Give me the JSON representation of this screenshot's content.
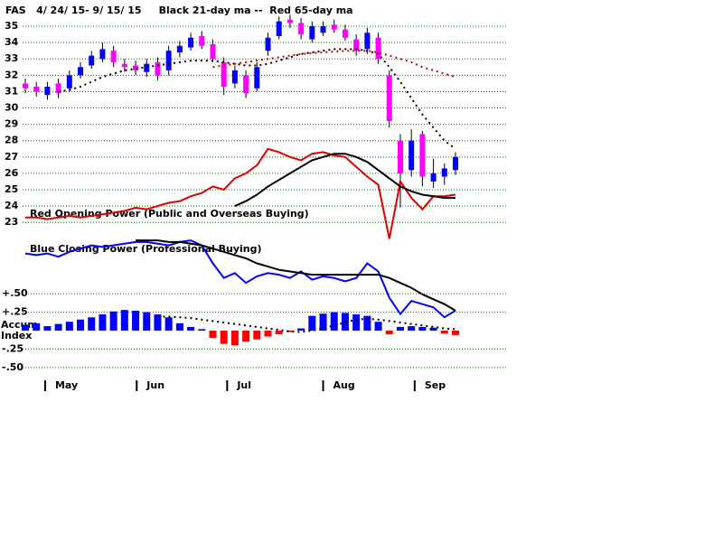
{
  "chart_data": [
    {
      "type": "candlestick",
      "title": "FAS   4/ 24/ 15- 9/ 15/ 15     Black 21-day ma --  Red 65-day ma",
      "annotations": [
        "Red Opening Power (Public and Overseas Buying)",
        "Blue Closing Power (Professional Buying)"
      ],
      "open": [
        31.5,
        31.3,
        30.8,
        31.5,
        31.2,
        32.0,
        32.6,
        33.0,
        33.5,
        32.7,
        32.6,
        32.2,
        32.8,
        32.3,
        33.4,
        33.7,
        34.4,
        33.9,
        32.8,
        31.5,
        32.0,
        31.2,
        33.5,
        34.4,
        35.4,
        35.2,
        34.2,
        34.6,
        35.1,
        34.8,
        34.2,
        33.6,
        34.3,
        32.0,
        28.0,
        26.2,
        28.4,
        25.5,
        25.8,
        26.2
      ],
      "high": [
        31.8,
        31.6,
        31.6,
        31.8,
        32.3,
        32.8,
        33.5,
        34.0,
        33.8,
        33.0,
        32.9,
        33.0,
        33.1,
        33.8,
        34.1,
        34.6,
        34.7,
        34.2,
        33.1,
        32.6,
        32.3,
        32.8,
        34.6,
        35.6,
        35.7,
        35.5,
        35.3,
        35.3,
        35.4,
        35.1,
        34.5,
        34.9,
        34.6,
        32.3,
        28.4,
        28.7,
        28.6,
        26.9,
        26.6,
        27.3
      ],
      "low": [
        30.9,
        30.7,
        30.5,
        30.6,
        31.0,
        31.8,
        32.4,
        32.8,
        32.5,
        32.2,
        32.0,
        31.9,
        31.7,
        32.0,
        33.1,
        33.5,
        33.6,
        32.8,
        30.8,
        31.2,
        30.6,
        31.0,
        33.2,
        34.2,
        34.9,
        34.2,
        34.0,
        34.4,
        34.6,
        34.1,
        33.2,
        33.3,
        32.7,
        28.8,
        23.9,
        25.8,
        25.2,
        25.1,
        25.3,
        25.9
      ],
      "close": [
        31.2,
        31.0,
        31.3,
        30.9,
        32.0,
        32.5,
        33.2,
        33.6,
        32.8,
        32.5,
        32.3,
        32.7,
        32.0,
        33.5,
        33.8,
        34.3,
        33.8,
        33.0,
        31.3,
        32.3,
        30.9,
        32.5,
        34.3,
        35.3,
        35.2,
        34.5,
        35.0,
        35.0,
        34.8,
        34.3,
        33.5,
        34.6,
        33.0,
        29.2,
        26.0,
        28.0,
        25.8,
        26.0,
        26.3,
        27.0
      ],
      "up_color": "#0000ff",
      "down_color": "#ff00ff",
      "lines": [
        {
          "color": "#000000",
          "dotted": true,
          "values": [
            null,
            null,
            null,
            31.0,
            31.1,
            31.3,
            31.6,
            31.9,
            32.1,
            32.3,
            32.4,
            32.5,
            32.6,
            32.7,
            32.8,
            32.9,
            32.9,
            32.9,
            32.8,
            32.7,
            32.6,
            32.6,
            32.7,
            32.9,
            33.1,
            33.3,
            33.4,
            33.5,
            33.6,
            33.6,
            33.6,
            33.5,
            33.3,
            32.5,
            31.6,
            30.6,
            29.6,
            28.8,
            28.0,
            27.5
          ]
        },
        {
          "color": "#cc0000",
          "dotted": true,
          "values": [
            null,
            null,
            null,
            null,
            null,
            null,
            null,
            null,
            null,
            null,
            null,
            null,
            null,
            null,
            null,
            null,
            null,
            32.5,
            32.6,
            32.7,
            32.8,
            32.9,
            33.0,
            33.1,
            33.2,
            33.3,
            33.35,
            33.4,
            33.45,
            33.5,
            33.5,
            33.5,
            33.4,
            33.2,
            33.0,
            32.8,
            32.5,
            32.3,
            32.1,
            31.9
          ]
        },
        {
          "color": "#dd0000",
          "dotted": false,
          "values": [
            23.3,
            23.3,
            23.2,
            23.3,
            23.4,
            23.3,
            23.4,
            23.5,
            23.6,
            23.7,
            23.9,
            23.8,
            24.0,
            24.2,
            24.3,
            24.6,
            24.8,
            25.2,
            25.0,
            25.7,
            26.0,
            26.5,
            27.5,
            27.3,
            27.0,
            26.8,
            27.2,
            27.3,
            27.1,
            27.0,
            26.4,
            25.8,
            25.3,
            22.0,
            25.5,
            24.5,
            23.8,
            24.6,
            24.6,
            24.7
          ]
        },
        {
          "color": "#000000",
          "dotted": false,
          "values": [
            null,
            null,
            null,
            null,
            null,
            null,
            null,
            null,
            null,
            null,
            null,
            null,
            null,
            null,
            null,
            null,
            null,
            null,
            null,
            24.0,
            24.3,
            24.7,
            25.2,
            25.6,
            26.0,
            26.4,
            26.8,
            27.0,
            27.2,
            27.2,
            27.0,
            26.7,
            26.2,
            25.7,
            25.2,
            24.9,
            24.7,
            24.6,
            24.5,
            24.5
          ]
        },
        {
          "color": "#0000ff",
          "dotted": false,
          "values": [
            21.1,
            21.0,
            21.1,
            20.9,
            21.2,
            21.4,
            21.6,
            21.5,
            21.6,
            21.7,
            21.8,
            21.8,
            21.7,
            21.6,
            21.8,
            21.9,
            21.6,
            20.5,
            19.6,
            19.9,
            19.3,
            19.7,
            19.9,
            19.8,
            19.6,
            20.0,
            19.5,
            19.7,
            19.6,
            19.4,
            19.6,
            20.5,
            20.0,
            18.4,
            17.4,
            18.2,
            18.0,
            17.8,
            17.2,
            17.6
          ]
        },
        {
          "color": "#000000",
          "dotted": false,
          "values": [
            null,
            null,
            null,
            null,
            null,
            null,
            null,
            null,
            null,
            null,
            21.9,
            21.9,
            21.9,
            21.8,
            21.8,
            21.7,
            21.6,
            21.4,
            21.2,
            21.0,
            20.8,
            20.5,
            20.3,
            20.1,
            20.0,
            19.9,
            19.8,
            19.8,
            19.8,
            19.8,
            19.8,
            19.8,
            19.8,
            19.6,
            19.3,
            19.0,
            18.6,
            18.3,
            18.0,
            17.6
          ]
        }
      ],
      "xlim": [
        0,
        39
      ],
      "ylim": [
        12.9,
        35.5
      ],
      "yticks": [
        23,
        24,
        25,
        26,
        27,
        28,
        29,
        30,
        31,
        32,
        33,
        34,
        35
      ],
      "grid": true,
      "grid_color": "#008000"
    },
    {
      "type": "bar",
      "label": [
        "Accum",
        "Index"
      ],
      "values": [
        0.08,
        0.1,
        0.06,
        0.09,
        0.12,
        0.15,
        0.18,
        0.22,
        0.26,
        0.28,
        0.27,
        0.25,
        0.22,
        0.18,
        0.1,
        0.05,
        0.02,
        -0.1,
        -0.18,
        -0.2,
        -0.15,
        -0.12,
        -0.08,
        -0.05,
        -0.02,
        0.03,
        0.2,
        0.23,
        0.25,
        0.24,
        0.22,
        0.2,
        0.12,
        -0.05,
        0.05,
        0.06,
        0.05,
        0.04,
        -0.04,
        -0.06
      ],
      "up_color": "#0000ff",
      "down_color": "#ff0000",
      "lines": [
        {
          "color": "#000000",
          "dotted": true,
          "values": [
            null,
            null,
            null,
            null,
            null,
            null,
            null,
            null,
            null,
            null,
            null,
            null,
            0.19,
            0.19,
            0.18,
            0.17,
            0.15,
            0.13,
            0.11,
            0.09,
            0.07,
            0.05,
            0.03,
            0.01,
            -0.01,
            -0.02,
            0.0,
            0.03,
            0.07,
            0.11,
            0.15,
            0.16,
            0.15,
            0.13,
            0.11,
            0.09,
            0.07,
            0.05,
            0.03,
            0.02
          ]
        }
      ],
      "xlim": [
        0,
        39
      ],
      "ylim": [
        -0.6,
        0.6
      ],
      "yticks": [
        {
          "value": 0.5,
          "label": "+.50"
        },
        {
          "value": 0.25,
          "label": "+.25"
        },
        {
          "value": -0.25,
          "label": "-.25"
        },
        {
          "value": -0.5,
          "label": "-.50"
        }
      ],
      "xticks": [
        {
          "value": 1.8,
          "label": "May"
        },
        {
          "value": 10.1,
          "label": "Jun"
        },
        {
          "value": 18.3,
          "label": "Jul"
        },
        {
          "value": 27.0,
          "label": "Aug"
        },
        {
          "value": 35.3,
          "label": "Sep"
        }
      ],
      "grid": true,
      "grid_color": "#008000"
    }
  ]
}
